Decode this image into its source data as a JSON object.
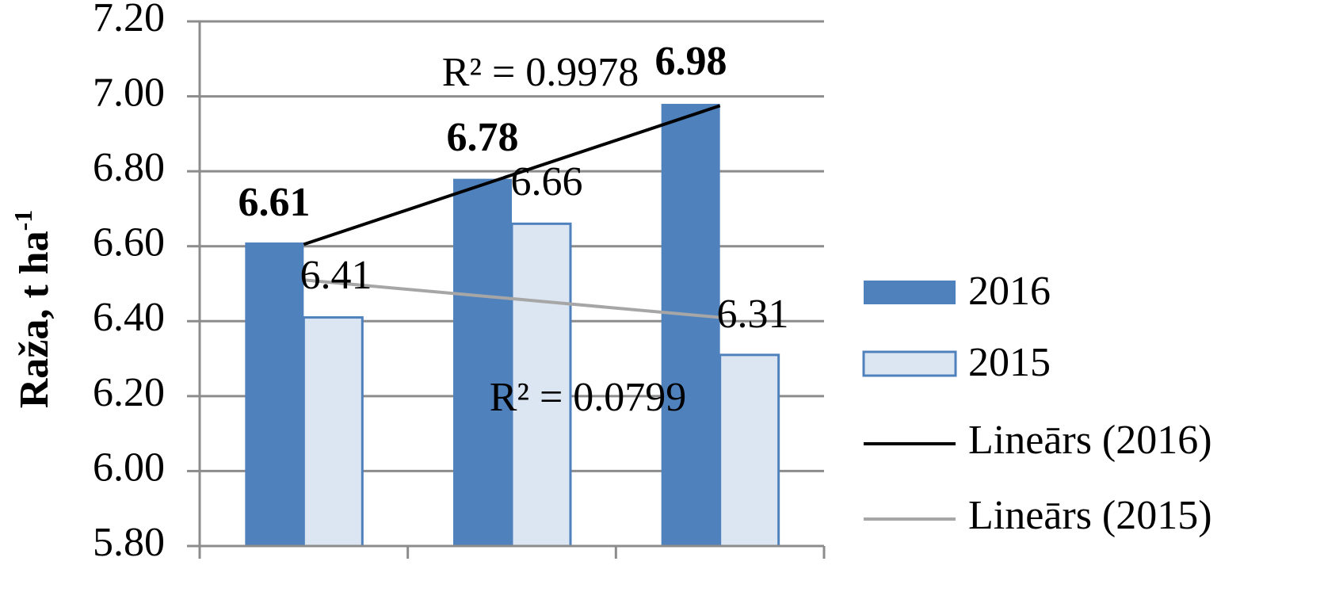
{
  "chart_data": {
    "type": "bar",
    "title": "",
    "xlabel": "",
    "ylabel": "Raža,  t ha",
    "ylabel_superscript": "-1",
    "categories": [
      "",
      "",
      ""
    ],
    "ylim": [
      5.8,
      7.2
    ],
    "yticks": [
      "5.80",
      "6.00",
      "6.20",
      "6.40",
      "6.60",
      "6.80",
      "7.00",
      "7.20"
    ],
    "grid": true,
    "legend_position": "right",
    "series": [
      {
        "name": "2016",
        "values": [
          6.61,
          6.78,
          6.98
        ],
        "labels": [
          "6.61",
          "6.78",
          "6.98"
        ],
        "color": "#4f81bd",
        "label_bold": true
      },
      {
        "name": "2015",
        "values": [
          6.41,
          6.66,
          6.31
        ],
        "labels": [
          "6.41",
          "6.66",
          "6.31"
        ],
        "color": "#dce6f2",
        "border": "#4f81bd",
        "label_bold": false
      }
    ],
    "trendlines": [
      {
        "name": "Lineārs (2016)",
        "series": "2016",
        "r2_text": "R² = 0.9978",
        "color": "#000000"
      },
      {
        "name": "Lineārs (2015)",
        "series": "2015",
        "r2_text": "R² = 0.0799",
        "color": "#a6a6a6"
      }
    ]
  }
}
